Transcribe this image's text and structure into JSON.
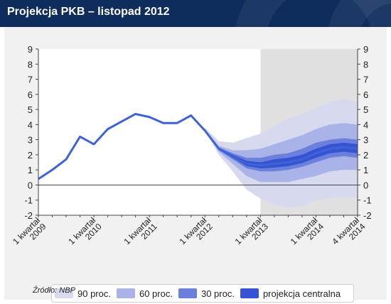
{
  "header": {
    "title": "Projekcja PKB – listopad 2012"
  },
  "chart_data": {
    "type": "area",
    "title": "Projekcja PKB – listopad 2012",
    "xlabel": "",
    "ylabel": "",
    "ylim": [
      -2,
      9
    ],
    "yticks": [
      -2,
      -1,
      0,
      1,
      2,
      3,
      4,
      5,
      6,
      7,
      8,
      9
    ],
    "y_axes": [
      "left",
      "right"
    ],
    "grid": false,
    "legend_position": "bottom",
    "x_period_start": "2009Q1",
    "x_period_end": "2014Q4",
    "xtick_labels": [
      {
        "period": "2009Q1",
        "lines": [
          "1 kwartał",
          "2009"
        ]
      },
      {
        "period": "2010Q1",
        "lines": [
          "1 kwartał",
          "2010"
        ]
      },
      {
        "period": "2011Q1",
        "lines": [
          "1 kwartał",
          "2011"
        ]
      },
      {
        "period": "2012Q1",
        "lines": [
          "1 kwartał",
          "2012"
        ]
      },
      {
        "period": "2013Q1",
        "lines": [
          "1 kwartał",
          "2013"
        ]
      },
      {
        "period": "2014Q1",
        "lines": [
          "1 kwartał",
          "2014"
        ]
      },
      {
        "period": "2014Q4",
        "lines": [
          "4 kwartał",
          "2014"
        ]
      }
    ],
    "forecast_shade_from": "2013Q1",
    "historical": {
      "periods": [
        "2009Q1",
        "2009Q2",
        "2009Q3",
        "2009Q4",
        "2010Q1",
        "2010Q2",
        "2010Q3",
        "2010Q4",
        "2011Q1",
        "2011Q2",
        "2011Q3",
        "2011Q4",
        "2012Q1"
      ],
      "values": [
        0.4,
        1.0,
        1.7,
        3.2,
        2.7,
        3.7,
        4.2,
        4.7,
        4.5,
        4.1,
        4.1,
        4.6,
        3.6
      ]
    },
    "projection": {
      "periods": [
        "2012Q1",
        "2012Q2",
        "2012Q3",
        "2012Q4",
        "2013Q1",
        "2013Q2",
        "2013Q3",
        "2013Q4",
        "2014Q1",
        "2014Q2",
        "2014Q3",
        "2014Q4"
      ],
      "central": [
        3.6,
        2.4,
        1.9,
        1.4,
        1.3,
        1.4,
        1.5,
        1.7,
        2.1,
        2.4,
        2.5,
        2.4
      ],
      "bands": [
        {
          "name": "90 proc.",
          "color": "#d7d9ef",
          "lower": [
            3.6,
            2.0,
            0.9,
            -0.3,
            -0.9,
            -1.3,
            -1.5,
            -1.4,
            -1.0,
            -0.9,
            -0.8,
            -0.8
          ],
          "upper": [
            3.8,
            2.9,
            2.8,
            3.1,
            3.4,
            3.9,
            4.4,
            4.7,
            5.1,
            5.5,
            5.7,
            5.5
          ]
        },
        {
          "name": "60 proc.",
          "color": "#a9b3e8",
          "lower": [
            3.6,
            2.2,
            1.4,
            0.6,
            0.2,
            0.2,
            0.2,
            0.4,
            0.6,
            0.9,
            1.0,
            1.0
          ],
          "upper": [
            3.7,
            2.6,
            2.3,
            2.3,
            2.4,
            2.7,
            3.0,
            3.3,
            3.7,
            4.0,
            4.1,
            4.0
          ]
        },
        {
          "name": "30 proc.",
          "color": "#6a80dc",
          "lower": [
            3.6,
            2.3,
            1.7,
            1.1,
            0.9,
            0.9,
            1.0,
            1.2,
            1.5,
            1.8,
            1.9,
            1.8
          ],
          "upper": [
            3.65,
            2.5,
            2.1,
            1.8,
            1.8,
            2.0,
            2.1,
            2.4,
            2.8,
            3.0,
            3.1,
            3.0
          ]
        },
        {
          "name": "projekcja centralna",
          "color": "#3553d2",
          "lower": [
            3.6,
            2.35,
            1.8,
            1.25,
            1.1,
            1.15,
            1.25,
            1.45,
            1.8,
            2.1,
            2.2,
            2.1
          ],
          "upper": [
            3.6,
            2.45,
            2.0,
            1.6,
            1.5,
            1.7,
            1.8,
            2.0,
            2.4,
            2.7,
            2.8,
            2.7
          ]
        }
      ]
    },
    "legend": [
      {
        "label": "90 proc.",
        "color": "#d7d9ef"
      },
      {
        "label": "60 proc.",
        "color": "#a9b3e8"
      },
      {
        "label": "30 proc.",
        "color": "#6a80dc"
      },
      {
        "label": "projekcja centralna",
        "color": "#3553d2"
      }
    ],
    "line_color": "#3d63d6"
  },
  "source": "Źródło: NBP"
}
